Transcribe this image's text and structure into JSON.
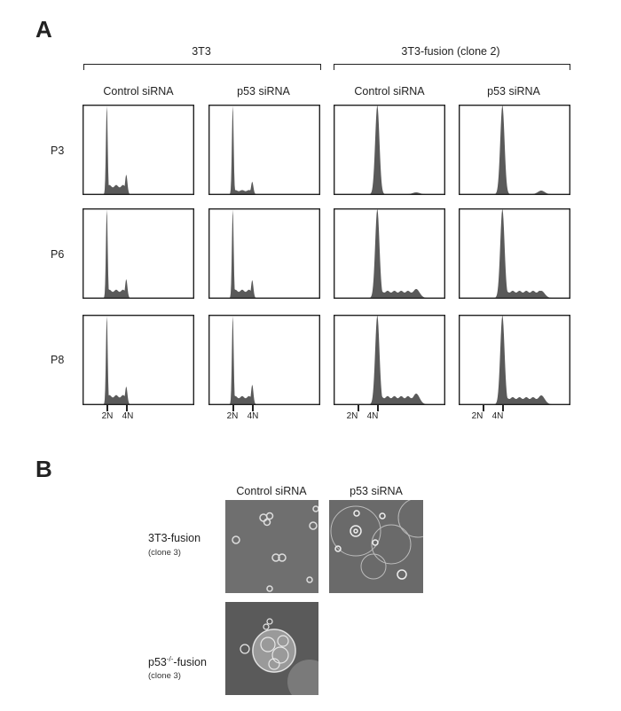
{
  "panel_a": {
    "letter": "A",
    "groups": [
      {
        "label": "3T3"
      },
      {
        "label": "3T3-fusion (clone 2)"
      }
    ],
    "columns": [
      "Control siRNA",
      "p53 siRNA",
      "Control siRNA",
      "p53 siRNA"
    ],
    "rows": [
      "P3",
      "P6",
      "P8"
    ],
    "x_ticks": [
      "2N",
      "4N"
    ],
    "fill_color": "#5a5a5a",
    "x_axis_units": "N (DNA content)",
    "x_range": [
      -0.5,
      11
    ],
    "histograms": [
      [
        {
          "g1_peak": 2,
          "s_phase_level": 0.09,
          "g2_peak_height": 0.22
        },
        {
          "g1_peak": 2,
          "s_phase_level": 0.04,
          "g2_peak_height": 0.14
        },
        {
          "g1_peak": 4,
          "s_phase_level": 0.0,
          "g2_peak_height": 0.02
        },
        {
          "g1_peak": 4,
          "s_phase_level": 0.0,
          "g2_peak_height": 0.04
        }
      ],
      [
        {
          "g1_peak": 2,
          "s_phase_level": 0.08,
          "g2_peak_height": 0.21
        },
        {
          "g1_peak": 2,
          "s_phase_level": 0.08,
          "g2_peak_height": 0.2
        },
        {
          "g1_peak": 4,
          "s_phase_level": 0.07,
          "g2_peak_height": 0.1
        },
        {
          "g1_peak": 4,
          "s_phase_level": 0.07,
          "g2_peak_height": 0.08
        }
      ],
      [
        {
          "g1_peak": 2,
          "s_phase_level": 0.09,
          "g2_peak_height": 0.2
        },
        {
          "g1_peak": 2,
          "s_phase_level": 0.08,
          "g2_peak_height": 0.22
        },
        {
          "g1_peak": 4,
          "s_phase_level": 0.08,
          "g2_peak_height": 0.12
        },
        {
          "g1_peak": 4,
          "s_phase_level": 0.07,
          "g2_peak_height": 0.1
        }
      ]
    ]
  },
  "panel_b": {
    "letter": "B",
    "columns": [
      "Control siRNA",
      "p53 siRNA"
    ],
    "rows": [
      {
        "label": "3T3-fusion",
        "sub": "(clone 3)"
      },
      {
        "label_pre": "p53",
        "label_sup": "-/-",
        "label_post": "-fusion",
        "sub": "(clone 3)"
      }
    ]
  }
}
